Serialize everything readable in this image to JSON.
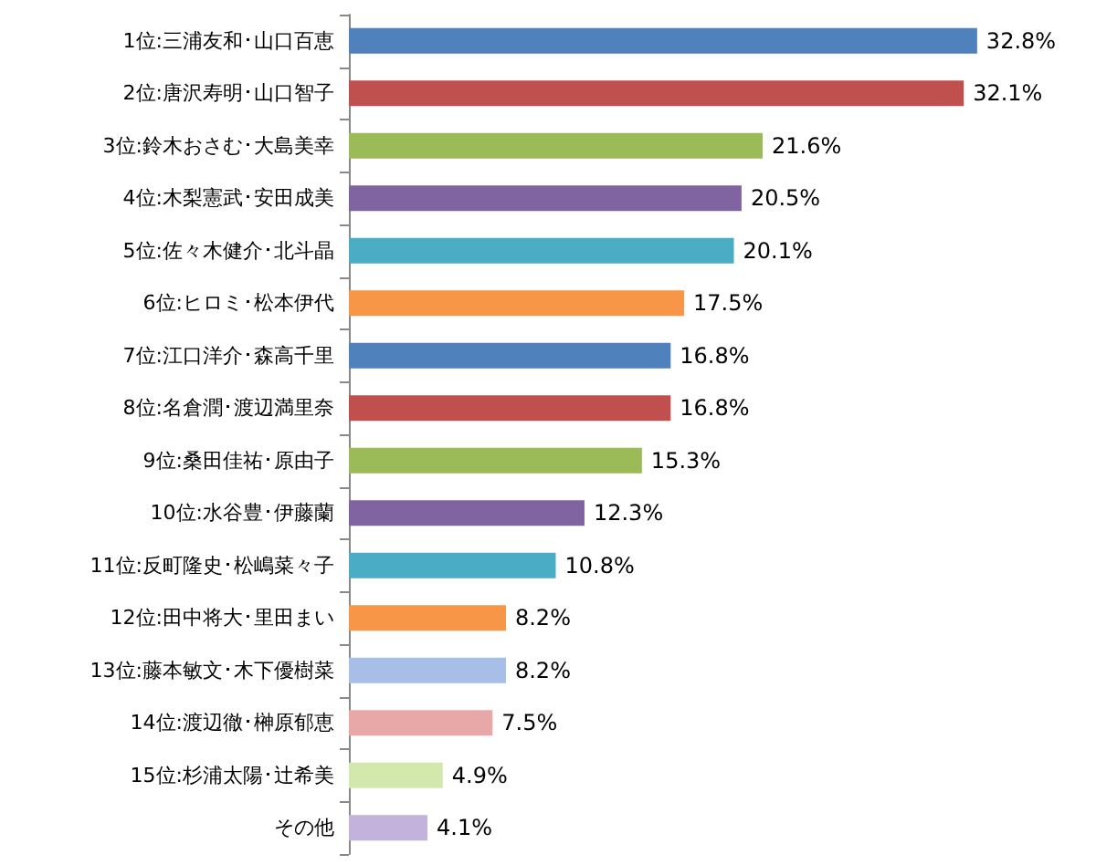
{
  "chart_data": {
    "type": "bar",
    "orientation": "horizontal",
    "categories": [
      "1位:三浦友和･山口百恵",
      "2位:唐沢寿明･山口智子",
      "3位:鈴木おさむ･大島美幸",
      "4位:木梨憲武･安田成美",
      "5位:佐々木健介･北斗晶",
      "6位:ヒロミ･松本伊代",
      "7位:江口洋介･森高千里",
      "8位:名倉潤･渡辺満里奈",
      "9位:桑田佳祐･原由子",
      "10位:水谷豊･伊藤蘭",
      "11位:反町隆史･松嶋菜々子",
      "12位:田中将大･里田まい",
      "13位:藤本敏文･木下優樹菜",
      "14位:渡辺徹･榊原郁恵",
      "15位:杉浦太陽･辻希美",
      "その他"
    ],
    "values": [
      32.8,
      32.1,
      21.6,
      20.5,
      20.1,
      17.5,
      16.8,
      16.8,
      15.3,
      12.3,
      10.8,
      8.2,
      8.2,
      7.5,
      4.9,
      4.1
    ],
    "value_labels": [
      "32.8%",
      "32.1%",
      "21.6%",
      "20.5%",
      "20.1%",
      "17.5%",
      "16.8%",
      "16.8%",
      "15.3%",
      "12.3%",
      "10.8%",
      "8.2%",
      "8.2%",
      "7.5%",
      "4.9%",
      "4.1%"
    ],
    "colors": [
      "#4f81bd",
      "#c0504d",
      "#9bbb59",
      "#8064a2",
      "#4bacc6",
      "#f79646",
      "#4f81bd",
      "#c0504d",
      "#9bbb59",
      "#8064a2",
      "#4bacc6",
      "#f79646",
      "#a7bfe6",
      "#e8a8a8",
      "#d3e8ad",
      "#c3b3dc"
    ]
  }
}
